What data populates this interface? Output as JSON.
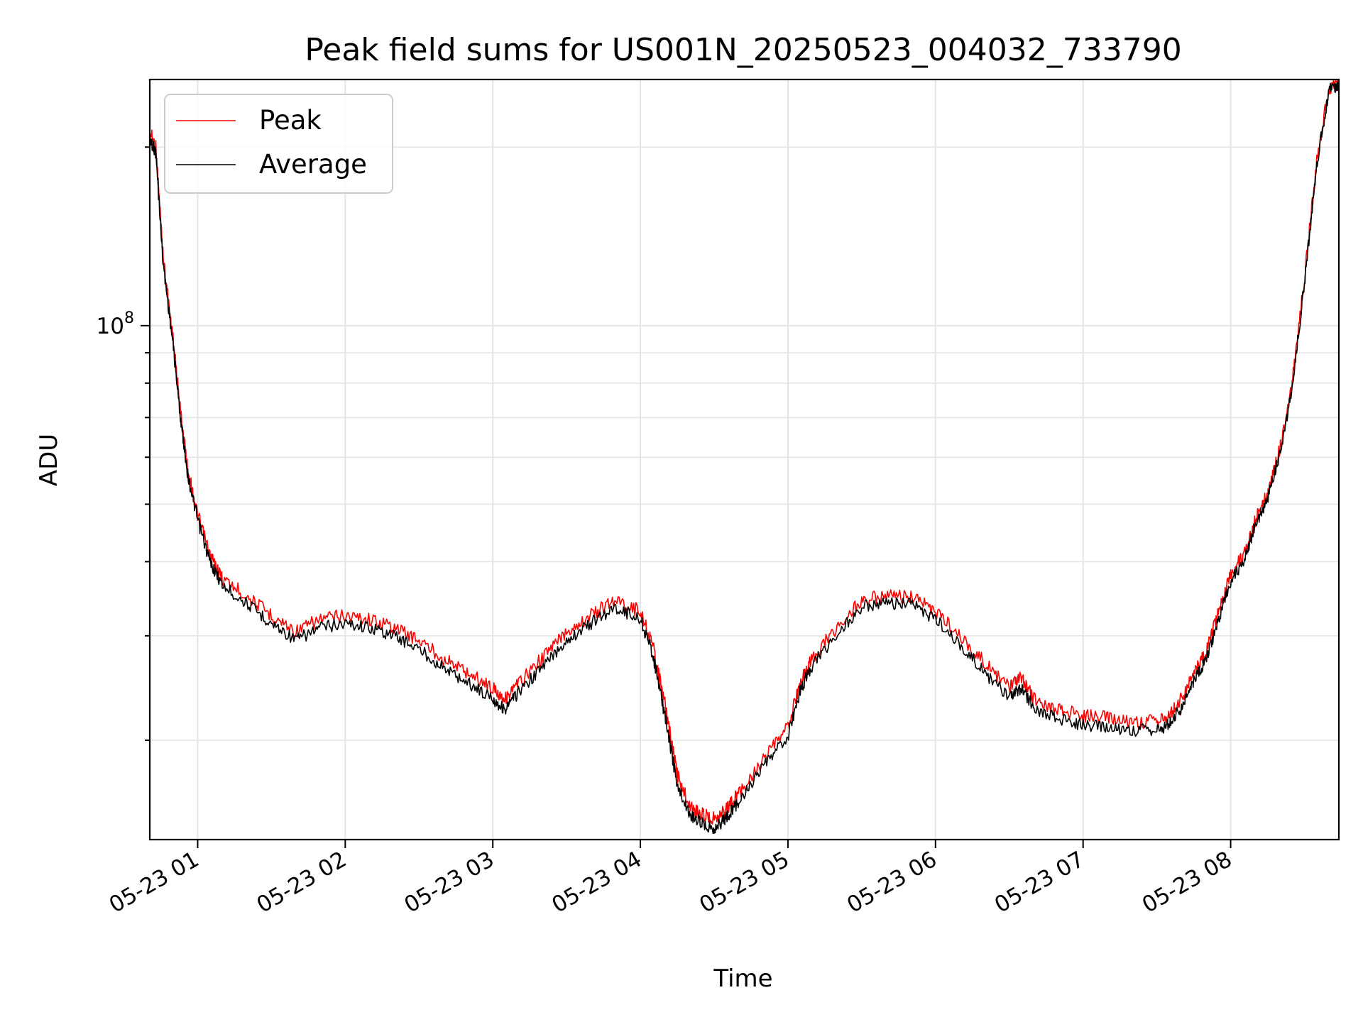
{
  "chart_data": {
    "type": "line",
    "title": "Peak field sums for US001N_20250523_004032_733790",
    "xlabel": "Time",
    "ylabel": "ADU",
    "y_scale": "log",
    "ylim": [
      13600000,
      260000000
    ],
    "xlim": [
      "2025-05-23 00:40:32",
      "2025-05-23 08:44:00"
    ],
    "x_ticks": [
      {
        "value": "2025-05-23 01:00",
        "label": "05-23 01"
      },
      {
        "value": "2025-05-23 02:00",
        "label": "05-23 02"
      },
      {
        "value": "2025-05-23 03:00",
        "label": "05-23 03"
      },
      {
        "value": "2025-05-23 04:00",
        "label": "05-23 04"
      },
      {
        "value": "2025-05-23 05:00",
        "label": "05-23 05"
      },
      {
        "value": "2025-05-23 06:00",
        "label": "05-23 06"
      },
      {
        "value": "2025-05-23 07:00",
        "label": "05-23 07"
      },
      {
        "value": "2025-05-23 08:00",
        "label": "05-23 08"
      }
    ],
    "y_ticks": [
      {
        "value": 100000000,
        "label_base": "10",
        "label_exp": "8"
      }
    ],
    "y_minor_ticks": [
      20000000,
      30000000,
      40000000,
      50000000,
      60000000,
      70000000,
      80000000,
      90000000,
      200000000
    ],
    "grid": true,
    "legend": "upper-left",
    "x": [
      "2025-05-23 00:40",
      "2025-05-23 00:43",
      "2025-05-23 00:46",
      "2025-05-23 00:50",
      "2025-05-23 00:53",
      "2025-05-23 00:56",
      "2025-05-23 01:00",
      "2025-05-23 01:05",
      "2025-05-23 01:10",
      "2025-05-23 01:20",
      "2025-05-23 01:30",
      "2025-05-23 01:40",
      "2025-05-23 01:50",
      "2025-05-23 02:00",
      "2025-05-23 02:10",
      "2025-05-23 02:20",
      "2025-05-23 02:30",
      "2025-05-23 02:40",
      "2025-05-23 02:50",
      "2025-05-23 03:00",
      "2025-05-23 03:05",
      "2025-05-23 03:10",
      "2025-05-23 03:20",
      "2025-05-23 03:30",
      "2025-05-23 03:40",
      "2025-05-23 03:50",
      "2025-05-23 04:00",
      "2025-05-23 04:05",
      "2025-05-23 04:10",
      "2025-05-23 04:15",
      "2025-05-23 04:20",
      "2025-05-23 04:25",
      "2025-05-23 04:30",
      "2025-05-23 04:35",
      "2025-05-23 04:40",
      "2025-05-23 04:50",
      "2025-05-23 05:00",
      "2025-05-23 05:05",
      "2025-05-23 05:10",
      "2025-05-23 05:20",
      "2025-05-23 05:30",
      "2025-05-23 05:40",
      "2025-05-23 05:50",
      "2025-05-23 06:00",
      "2025-05-23 06:10",
      "2025-05-23 06:20",
      "2025-05-23 06:30",
      "2025-05-23 06:35",
      "2025-05-23 06:40",
      "2025-05-23 06:50",
      "2025-05-23 07:00",
      "2025-05-23 07:10",
      "2025-05-23 07:20",
      "2025-05-23 07:30",
      "2025-05-23 07:35",
      "2025-05-23 07:40",
      "2025-05-23 07:45",
      "2025-05-23 07:50",
      "2025-05-23 07:55",
      "2025-05-23 08:00",
      "2025-05-23 08:05",
      "2025-05-23 08:10",
      "2025-05-23 08:15",
      "2025-05-23 08:20",
      "2025-05-23 08:25",
      "2025-05-23 08:30",
      "2025-05-23 08:35",
      "2025-05-23 08:40",
      "2025-05-23 08:44"
    ],
    "series": [
      {
        "name": "Peak",
        "color": "#ff0000",
        "values": [
          215000000,
          200000000,
          130000000,
          95000000,
          72000000,
          57000000,
          48000000,
          41000000,
          37500000,
          35000000,
          32500000,
          30500000,
          32000000,
          32500000,
          32000000,
          31000000,
          29500000,
          27500000,
          26000000,
          24500000,
          23500000,
          24800000,
          27500000,
          30500000,
          32500000,
          34500000,
          33000000,
          29000000,
          23000000,
          17500000,
          15500000,
          15000000,
          14800000,
          15300000,
          16300000,
          18500000,
          21000000,
          25000000,
          27500000,
          31000000,
          34500000,
          35000000,
          34800000,
          33000000,
          30000000,
          27000000,
          24500000,
          25500000,
          23500000,
          22500000,
          22000000,
          21800000,
          21500000,
          21500000,
          22000000,
          23500000,
          26000000,
          28000000,
          33000000,
          38000000,
          41000000,
          47000000,
          52000000,
          62000000,
          80000000,
          120000000,
          190000000,
          252000000,
          256000000
        ]
      },
      {
        "name": "Average",
        "color": "#000000",
        "values": [
          210000000,
          195000000,
          127000000,
          93000000,
          70000000,
          56000000,
          47000000,
          40000000,
          36500000,
          34000000,
          31500000,
          29500000,
          31000000,
          31500000,
          31000000,
          30000000,
          28500000,
          26500000,
          25000000,
          23500000,
          22500000,
          24000000,
          26500000,
          29500000,
          31500000,
          33500000,
          32000000,
          28000000,
          22000000,
          16800000,
          15000000,
          14500000,
          14200000,
          14800000,
          15800000,
          18000000,
          20300000,
          24300000,
          26800000,
          30200000,
          33600000,
          34000000,
          33900000,
          32000000,
          29000000,
          26000000,
          23500000,
          24500000,
          22700000,
          21700000,
          21200000,
          21000000,
          20800000,
          20800000,
          21300000,
          22700000,
          25200000,
          27200000,
          32000000,
          37000000,
          40000000,
          46000000,
          51000000,
          61000000,
          78000000,
          118000000,
          187000000,
          250000000,
          255000000
        ]
      }
    ]
  }
}
